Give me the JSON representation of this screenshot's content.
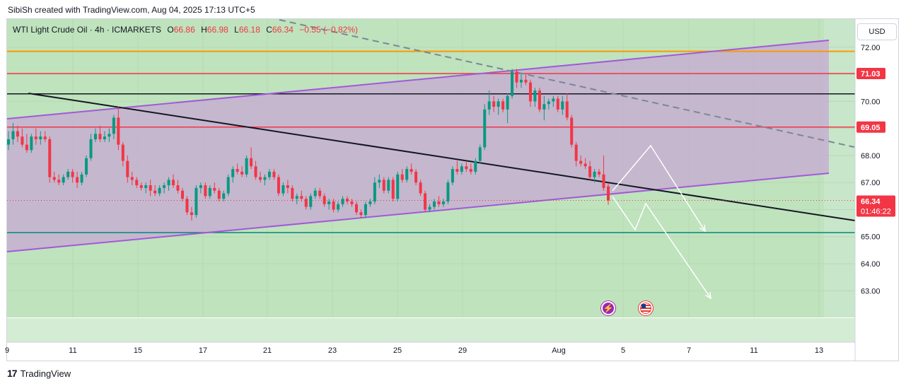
{
  "header": {
    "text": "SibiSh created with TradingView.com, Aug 04, 2025 17:13 UTC+5"
  },
  "legend": {
    "symbol": "WTI Light Crude Oil · 4h · ICMARKETS",
    "o_label": "O",
    "o": "66.86",
    "h_label": "H",
    "h": "66.98",
    "l_label": "L",
    "l": "66.18",
    "c_label": "C",
    "c": "66.34",
    "change": "−0.55 (−0.82%)"
  },
  "currency": "USD",
  "footer": {
    "brand": "TradingView"
  },
  "events": {
    "flash_icon": "lightning-icon",
    "flag_icon": "us-flag-icon"
  },
  "colors": {
    "up": "#089981",
    "down": "#f23645",
    "bg_zone": "#c8e6c9",
    "channel_fill": "#c5a3d6",
    "channel_line": "#a259d9",
    "orange": "#ff9800",
    "red": "#f23645",
    "dark": "#131722",
    "teal": "#00897b"
  },
  "chart_data": {
    "type": "candlestick",
    "timeframe": "4h",
    "ylim": [
      62.0,
      73.0
    ],
    "x_tick_labels": [
      "9",
      "11",
      "15",
      "17",
      "21",
      "23",
      "25",
      "29",
      "Aug",
      "5",
      "7",
      "11",
      "13"
    ],
    "y_tick_labels": [
      "72.00",
      "71.03",
      "70.00",
      "69.05",
      "68.00",
      "67.00",
      "66.34",
      "65.00",
      "64.00",
      "63.00"
    ],
    "price_labels": [
      {
        "text": "71.03",
        "value": 71.03,
        "color": "#f23645"
      },
      {
        "text": "69.05",
        "value": 69.05,
        "color": "#f23645"
      }
    ],
    "current_price": {
      "text": "66.34",
      "countdown": "01:46:22",
      "value": 66.34
    },
    "horizontal_lines": [
      {
        "value": 71.85,
        "color": "#ff9800"
      },
      {
        "value": 71.03,
        "color": "#f23645"
      },
      {
        "value": 70.28,
        "color": "#131722"
      },
      {
        "value": 69.05,
        "color": "#f23645"
      },
      {
        "value": 65.15,
        "color": "#00897b"
      }
    ],
    "candles": [
      [
        68.4,
        68.9,
        68.2,
        68.6
      ],
      [
        68.6,
        69.2,
        68.4,
        68.9
      ],
      [
        68.9,
        69.1,
        68.5,
        68.7
      ],
      [
        68.7,
        69.0,
        68.3,
        68.4
      ],
      [
        68.4,
        68.8,
        68.1,
        68.2
      ],
      [
        68.2,
        68.8,
        68.1,
        68.7
      ],
      [
        68.7,
        69.0,
        68.4,
        68.6
      ],
      [
        68.6,
        68.9,
        68.4,
        68.7
      ],
      [
        68.7,
        68.9,
        68.5,
        68.6
      ],
      [
        68.6,
        68.7,
        67.0,
        67.2
      ],
      [
        67.2,
        67.4,
        67.0,
        67.1
      ],
      [
        67.1,
        67.3,
        66.9,
        67.0
      ],
      [
        67.0,
        67.3,
        66.9,
        67.2
      ],
      [
        67.2,
        67.5,
        67.1,
        67.4
      ],
      [
        67.4,
        67.5,
        67.0,
        67.2
      ],
      [
        67.2,
        67.4,
        66.8,
        67.0
      ],
      [
        67.0,
        67.4,
        66.9,
        67.3
      ],
      [
        67.3,
        68.0,
        67.2,
        67.9
      ],
      [
        67.9,
        68.8,
        67.8,
        68.6
      ],
      [
        68.6,
        69.0,
        68.5,
        68.8
      ],
      [
        68.8,
        69.1,
        68.5,
        68.6
      ],
      [
        68.6,
        68.9,
        68.5,
        68.7
      ],
      [
        68.7,
        69.0,
        68.5,
        68.8
      ],
      [
        68.8,
        69.5,
        68.6,
        69.4
      ],
      [
        69.4,
        69.8,
        68.2,
        68.4
      ],
      [
        68.4,
        68.5,
        67.6,
        67.8
      ],
      [
        67.8,
        68.0,
        67.0,
        67.2
      ],
      [
        67.2,
        67.4,
        66.9,
        67.1
      ],
      [
        67.1,
        67.2,
        66.8,
        66.9
      ],
      [
        66.9,
        67.0,
        66.7,
        66.8
      ],
      [
        66.8,
        67.0,
        66.6,
        66.9
      ],
      [
        66.9,
        67.1,
        66.5,
        66.7
      ],
      [
        66.7,
        66.9,
        66.5,
        66.6
      ],
      [
        66.6,
        66.9,
        66.5,
        66.8
      ],
      [
        66.8,
        67.0,
        66.6,
        66.9
      ],
      [
        66.9,
        67.2,
        66.7,
        67.1
      ],
      [
        67.1,
        67.3,
        66.8,
        66.9
      ],
      [
        66.9,
        67.1,
        66.6,
        66.7
      ],
      [
        66.7,
        66.8,
        66.3,
        66.4
      ],
      [
        66.4,
        66.5,
        65.8,
        65.9
      ],
      [
        65.9,
        66.1,
        65.6,
        65.8
      ],
      [
        65.8,
        66.9,
        65.7,
        66.8
      ],
      [
        66.8,
        67.0,
        66.6,
        66.9
      ],
      [
        66.9,
        67.0,
        66.4,
        66.5
      ],
      [
        66.5,
        66.9,
        66.4,
        66.8
      ],
      [
        66.8,
        67.0,
        66.6,
        66.7
      ],
      [
        66.7,
        66.8,
        66.3,
        66.4
      ],
      [
        66.4,
        66.7,
        66.3,
        66.6
      ],
      [
        66.6,
        67.3,
        66.5,
        67.2
      ],
      [
        67.2,
        67.6,
        67.0,
        67.5
      ],
      [
        67.5,
        67.7,
        67.3,
        67.4
      ],
      [
        67.4,
        67.6,
        67.2,
        67.3
      ],
      [
        67.3,
        68.0,
        67.2,
        67.9
      ],
      [
        67.9,
        68.3,
        67.5,
        67.6
      ],
      [
        67.6,
        67.8,
        67.1,
        67.2
      ],
      [
        67.2,
        67.4,
        67.0,
        67.1
      ],
      [
        67.1,
        67.3,
        66.9,
        67.2
      ],
      [
        67.2,
        67.5,
        67.1,
        67.4
      ],
      [
        67.4,
        67.5,
        67.1,
        67.2
      ],
      [
        67.2,
        67.3,
        66.5,
        66.6
      ],
      [
        66.6,
        67.0,
        66.5,
        66.9
      ],
      [
        66.9,
        67.1,
        66.6,
        66.8
      ],
      [
        66.8,
        66.9,
        66.3,
        66.4
      ],
      [
        66.4,
        66.6,
        66.2,
        66.5
      ],
      [
        66.5,
        66.7,
        66.3,
        66.4
      ],
      [
        66.4,
        66.5,
        66.0,
        66.1
      ],
      [
        66.1,
        66.6,
        66.0,
        66.5
      ],
      [
        66.5,
        66.8,
        66.4,
        66.7
      ],
      [
        66.7,
        66.8,
        66.4,
        66.5
      ],
      [
        66.5,
        66.6,
        66.1,
        66.2
      ],
      [
        66.2,
        66.4,
        66.0,
        66.3
      ],
      [
        66.3,
        66.4,
        65.9,
        66.0
      ],
      [
        66.0,
        66.3,
        65.9,
        66.2
      ],
      [
        66.2,
        66.5,
        66.1,
        66.4
      ],
      [
        66.4,
        66.5,
        66.2,
        66.3
      ],
      [
        66.3,
        66.4,
        66.1,
        66.2
      ],
      [
        66.2,
        66.3,
        65.8,
        65.9
      ],
      [
        65.9,
        66.0,
        65.7,
        65.8
      ],
      [
        65.8,
        66.3,
        65.7,
        66.2
      ],
      [
        66.2,
        66.4,
        66.1,
        66.3
      ],
      [
        66.3,
        67.2,
        66.2,
        67.0
      ],
      [
        67.0,
        67.3,
        66.8,
        67.1
      ],
      [
        67.1,
        67.2,
        66.6,
        66.7
      ],
      [
        66.7,
        67.2,
        66.6,
        67.1
      ],
      [
        67.1,
        67.2,
        66.3,
        66.4
      ],
      [
        66.4,
        67.4,
        66.3,
        67.3
      ],
      [
        67.3,
        67.5,
        67.0,
        67.1
      ],
      [
        67.1,
        67.6,
        67.0,
        67.5
      ],
      [
        67.5,
        67.7,
        67.3,
        67.4
      ],
      [
        67.4,
        67.5,
        66.9,
        67.0
      ],
      [
        67.0,
        67.1,
        66.5,
        66.6
      ],
      [
        66.6,
        66.7,
        65.9,
        66.0
      ],
      [
        66.0,
        66.2,
        65.9,
        66.1
      ],
      [
        66.1,
        66.4,
        66.0,
        66.3
      ],
      [
        66.3,
        66.5,
        66.1,
        66.2
      ],
      [
        66.2,
        66.4,
        66.1,
        66.3
      ],
      [
        66.3,
        67.1,
        66.2,
        67.0
      ],
      [
        67.0,
        67.6,
        66.9,
        67.5
      ],
      [
        67.5,
        67.8,
        67.3,
        67.4
      ],
      [
        67.4,
        67.7,
        67.3,
        67.6
      ],
      [
        67.6,
        67.8,
        67.4,
        67.5
      ],
      [
        67.5,
        67.7,
        67.3,
        67.4
      ],
      [
        67.4,
        67.9,
        67.3,
        67.8
      ],
      [
        67.8,
        68.4,
        67.7,
        68.3
      ],
      [
        68.3,
        69.9,
        68.2,
        69.7
      ],
      [
        69.7,
        70.4,
        69.5,
        70.0
      ],
      [
        70.0,
        70.2,
        69.6,
        69.8
      ],
      [
        69.8,
        70.1,
        69.5,
        70.0
      ],
      [
        70.0,
        70.1,
        69.6,
        69.7
      ],
      [
        69.7,
        70.3,
        69.2,
        70.2
      ],
      [
        70.2,
        71.2,
        70.1,
        71.1
      ],
      [
        71.1,
        71.2,
        70.5,
        70.7
      ],
      [
        70.7,
        71.0,
        70.5,
        70.8
      ],
      [
        70.8,
        71.0,
        70.6,
        70.7
      ],
      [
        70.7,
        70.8,
        69.8,
        70.0
      ],
      [
        70.0,
        70.5,
        69.8,
        70.4
      ],
      [
        70.4,
        70.5,
        69.6,
        69.7
      ],
      [
        69.7,
        70.2,
        69.3,
        69.9
      ],
      [
        69.9,
        70.1,
        69.7,
        70.0
      ],
      [
        70.0,
        70.2,
        69.8,
        70.1
      ],
      [
        70.1,
        70.2,
        69.6,
        69.7
      ],
      [
        69.7,
        70.2,
        69.5,
        70.0
      ],
      [
        70.0,
        70.3,
        69.3,
        69.4
      ],
      [
        69.4,
        69.5,
        68.3,
        68.4
      ],
      [
        68.4,
        68.5,
        67.6,
        67.8
      ],
      [
        67.8,
        68.0,
        67.6,
        67.7
      ],
      [
        67.7,
        67.9,
        67.5,
        67.6
      ],
      [
        67.6,
        67.8,
        67.1,
        67.2
      ],
      [
        67.2,
        67.5,
        67.0,
        67.4
      ],
      [
        67.4,
        67.5,
        67.2,
        67.3
      ],
      [
        67.3,
        68.0,
        66.7,
        66.8
      ],
      [
        66.86,
        66.98,
        66.18,
        66.34
      ]
    ],
    "projection_paths": [
      [
        [
          66.3,
          0
        ],
        [
          68.3,
          0
        ],
        [
          65.3,
          0
        ]
      ],
      [
        [
          66.5,
          0
        ],
        [
          65.2,
          0
        ],
        [
          66.3,
          0
        ],
        [
          63.0,
          0
        ]
      ]
    ]
  }
}
